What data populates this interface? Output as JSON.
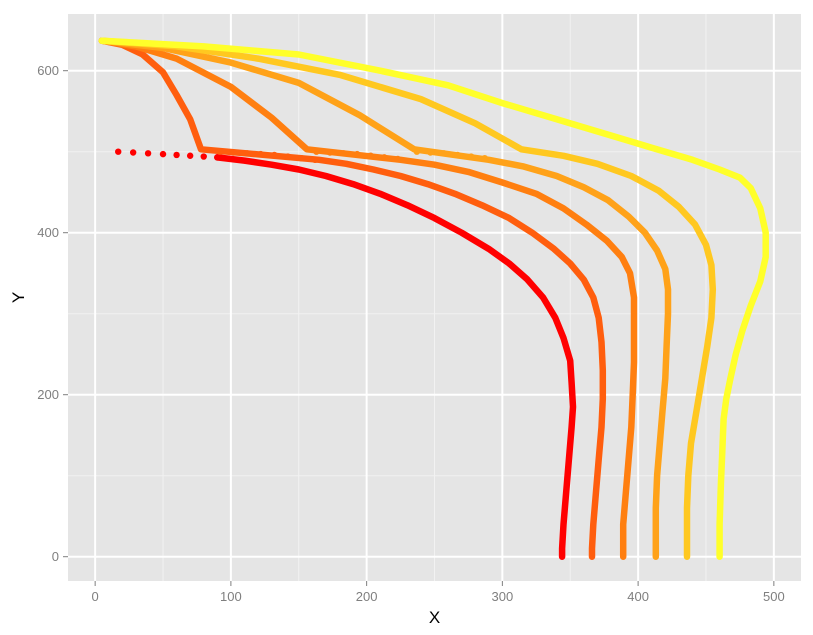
{
  "chart_data": {
    "type": "scatter",
    "xlabel": "X",
    "ylabel": "Y",
    "xlim": [
      -20,
      520
    ],
    "ylim": [
      -30,
      670
    ],
    "x_ticks": [
      0,
      100,
      200,
      300,
      400,
      500
    ],
    "y_ticks": [
      0,
      200,
      400,
      600
    ],
    "x_tick_labels": [
      "0",
      "100",
      "200",
      "300",
      "400",
      "500"
    ],
    "y_tick_labels": [
      "0",
      "200",
      "400",
      "600"
    ],
    "grid": true,
    "legend": "none",
    "panel_color": "#e5e5e5",
    "grid_color": "#ffffff",
    "series": [
      {
        "color": "#ff0000",
        "dotted": [
          [
            17,
            500
          ],
          [
            28,
            499
          ],
          [
            39,
            498
          ],
          [
            50,
            497
          ],
          [
            60,
            496
          ],
          [
            70,
            495
          ],
          [
            80,
            494
          ],
          [
            90,
            493
          ]
        ],
        "solid": [
          [
            90,
            493
          ],
          [
            110,
            489
          ],
          [
            130,
            484
          ],
          [
            150,
            478
          ],
          [
            170,
            470
          ],
          [
            190,
            460
          ],
          [
            210,
            448
          ],
          [
            230,
            434
          ],
          [
            250,
            418
          ],
          [
            270,
            400
          ],
          [
            290,
            380
          ],
          [
            305,
            362
          ],
          [
            318,
            343
          ],
          [
            330,
            320
          ],
          [
            339,
            295
          ],
          [
            345,
            270
          ],
          [
            350,
            242
          ],
          [
            351,
            215
          ],
          [
            352,
            185
          ],
          [
            351,
            160
          ],
          [
            349,
            120
          ],
          [
            347,
            80
          ],
          [
            345,
            40
          ],
          [
            344,
            10
          ],
          [
            344,
            0
          ]
        ]
      },
      {
        "color": "#ff5e0e",
        "dotted": [
          [
            92,
            500
          ],
          [
            102,
            499
          ],
          [
            112,
            498
          ],
          [
            122,
            497
          ],
          [
            132,
            496
          ],
          [
            142,
            494
          ],
          [
            152,
            492
          ],
          [
            162,
            490
          ]
        ],
        "solid": [
          [
            5,
            637
          ],
          [
            20,
            632
          ],
          [
            35,
            620
          ],
          [
            50,
            598
          ],
          [
            60,
            570
          ],
          [
            70,
            540
          ],
          [
            78,
            503
          ],
          [
            165,
            490
          ],
          [
            185,
            485
          ],
          [
            205,
            478
          ],
          [
            225,
            470
          ],
          [
            245,
            460
          ],
          [
            265,
            448
          ],
          [
            285,
            434
          ],
          [
            305,
            418
          ],
          [
            322,
            400
          ],
          [
            338,
            380
          ],
          [
            350,
            362
          ],
          [
            360,
            342
          ],
          [
            367,
            320
          ],
          [
            371,
            295
          ],
          [
            373,
            265
          ],
          [
            374,
            230
          ],
          [
            374,
            195
          ],
          [
            373,
            160
          ],
          [
            371,
            120
          ],
          [
            369,
            80
          ],
          [
            367,
            40
          ],
          [
            366,
            10
          ],
          [
            366,
            0
          ]
        ]
      },
      {
        "color": "#ff7f10",
        "dotted": [
          [
            163,
            500
          ],
          [
            173,
            499
          ],
          [
            183,
            498
          ],
          [
            193,
            497
          ],
          [
            203,
            495
          ],
          [
            213,
            493
          ],
          [
            223,
            491
          ]
        ],
        "solid": [
          [
            5,
            637
          ],
          [
            30,
            630
          ],
          [
            60,
            615
          ],
          [
            100,
            580
          ],
          [
            130,
            542
          ],
          [
            156,
            503
          ],
          [
            225,
            490
          ],
          [
            250,
            484
          ],
          [
            275,
            475
          ],
          [
            300,
            462
          ],
          [
            325,
            448
          ],
          [
            345,
            430
          ],
          [
            362,
            410
          ],
          [
            377,
            390
          ],
          [
            388,
            370
          ],
          [
            394,
            350
          ],
          [
            397,
            320
          ],
          [
            397,
            280
          ],
          [
            397,
            240
          ],
          [
            396,
            200
          ],
          [
            395,
            160
          ],
          [
            393,
            120
          ],
          [
            391,
            80
          ],
          [
            389,
            40
          ],
          [
            389,
            10
          ],
          [
            389,
            0
          ]
        ]
      },
      {
        "color": "#ffa219",
        "dotted": [
          [
            237,
            500
          ],
          [
            247,
            499
          ],
          [
            257,
            498
          ],
          [
            267,
            496
          ],
          [
            277,
            494
          ],
          [
            287,
            492
          ]
        ],
        "solid": [
          [
            5,
            637
          ],
          [
            50,
            628
          ],
          [
            100,
            610
          ],
          [
            150,
            585
          ],
          [
            195,
            545
          ],
          [
            235,
            503
          ],
          [
            290,
            490
          ],
          [
            315,
            482
          ],
          [
            340,
            470
          ],
          [
            360,
            456
          ],
          [
            378,
            440
          ],
          [
            393,
            420
          ],
          [
            405,
            400
          ],
          [
            414,
            378
          ],
          [
            420,
            355
          ],
          [
            422,
            330
          ],
          [
            422,
            300
          ],
          [
            421,
            260
          ],
          [
            420,
            220
          ],
          [
            418,
            180
          ],
          [
            416,
            140
          ],
          [
            414,
            100
          ],
          [
            413,
            60
          ],
          [
            413,
            20
          ],
          [
            413,
            0
          ]
        ]
      },
      {
        "color": "#ffc820",
        "dotted": [],
        "solid": [
          [
            5,
            637
          ],
          [
            60,
            630
          ],
          [
            120,
            615
          ],
          [
            180,
            595
          ],
          [
            240,
            565
          ],
          [
            280,
            535
          ],
          [
            314,
            503
          ],
          [
            345,
            495
          ],
          [
            370,
            485
          ],
          [
            395,
            470
          ],
          [
            415,
            452
          ],
          [
            430,
            432
          ],
          [
            442,
            410
          ],
          [
            450,
            385
          ],
          [
            454,
            360
          ],
          [
            455,
            330
          ],
          [
            454,
            295
          ],
          [
            451,
            260
          ],
          [
            447,
            220
          ],
          [
            443,
            180
          ],
          [
            439,
            140
          ],
          [
            437,
            100
          ],
          [
            436,
            60
          ],
          [
            436,
            20
          ],
          [
            436,
            0
          ]
        ]
      },
      {
        "color": "#ffff2a",
        "dotted": [],
        "solid": [
          [
            5,
            637
          ],
          [
            80,
            630
          ],
          [
            150,
            620
          ],
          [
            210,
            600
          ],
          [
            260,
            582
          ],
          [
            300,
            560
          ],
          [
            340,
            540
          ],
          [
            380,
            520
          ],
          [
            410,
            505
          ],
          [
            440,
            490
          ],
          [
            460,
            478
          ],
          [
            475,
            468
          ],
          [
            483,
            455
          ],
          [
            490,
            430
          ],
          [
            494,
            400
          ],
          [
            494,
            370
          ],
          [
            490,
            340
          ],
          [
            483,
            310
          ],
          [
            477,
            280
          ],
          [
            472,
            250
          ],
          [
            468,
            220
          ],
          [
            465,
            195
          ],
          [
            463,
            170
          ],
          [
            462,
            130
          ],
          [
            461,
            90
          ],
          [
            460,
            40
          ],
          [
            460,
            0
          ]
        ]
      }
    ]
  }
}
